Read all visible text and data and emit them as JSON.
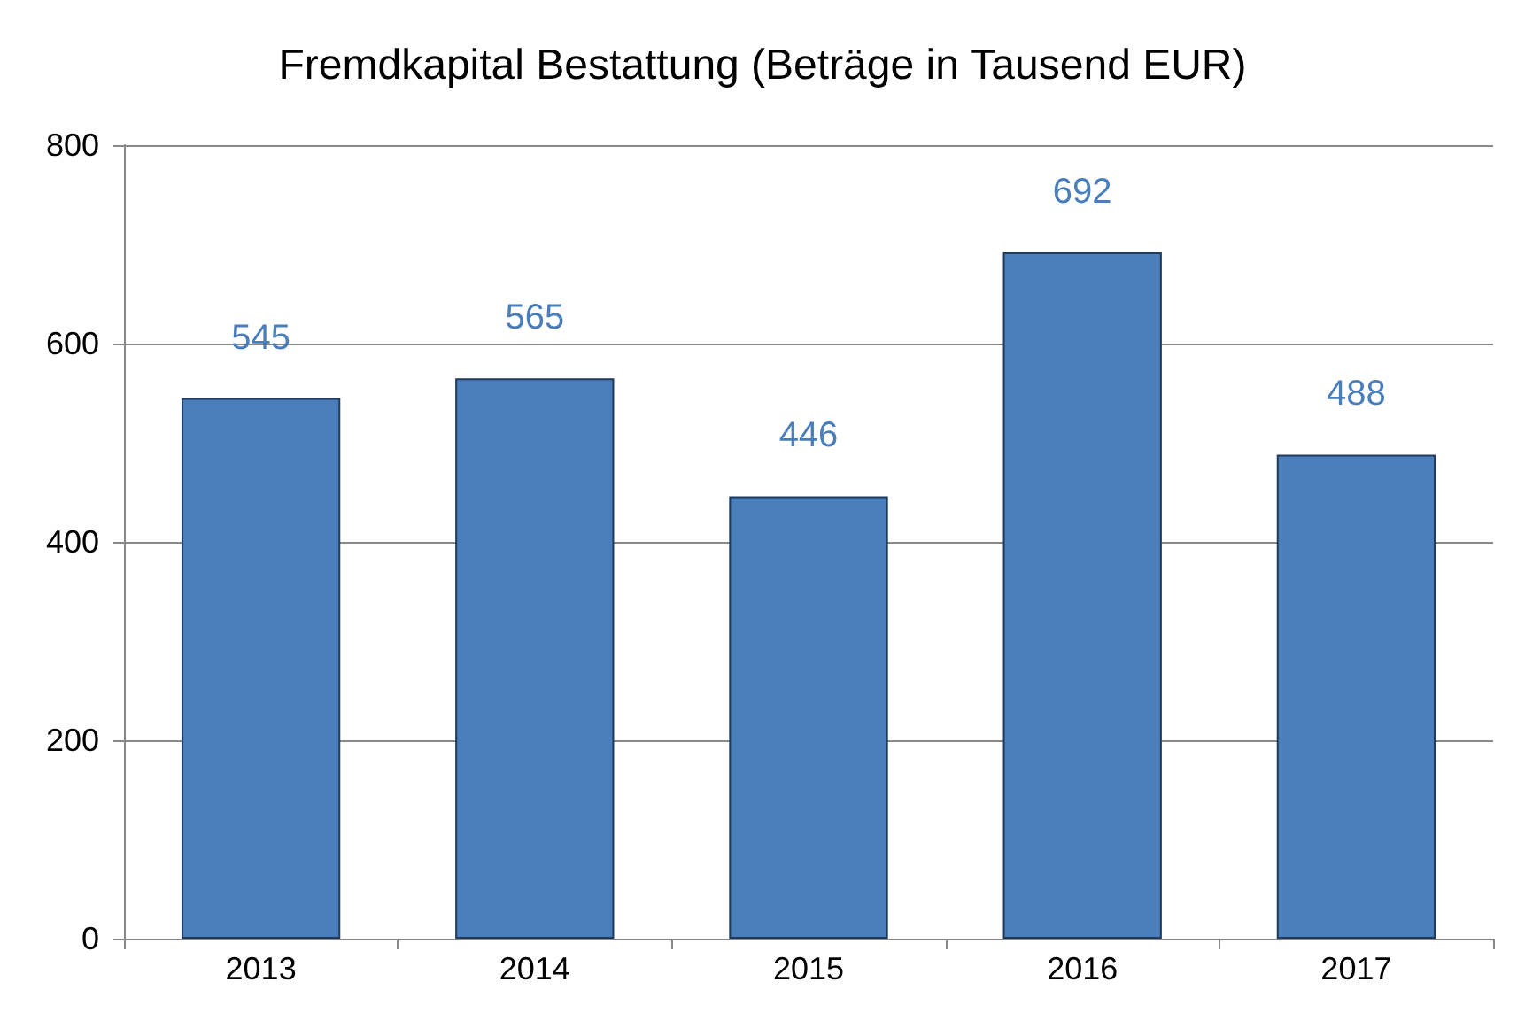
{
  "chart_data": {
    "type": "bar",
    "title": "Fremdkapital Bestattung (Beträge in Tausend EUR)",
    "categories": [
      "2013",
      "2014",
      "2015",
      "2016",
      "2017"
    ],
    "values": [
      545,
      565,
      446,
      692,
      488
    ],
    "color": "#4a7ebb",
    "ylim": [
      0,
      800
    ],
    "yticks": [
      0,
      200,
      400,
      600,
      800
    ],
    "grid": "y",
    "data_labels": true
  }
}
